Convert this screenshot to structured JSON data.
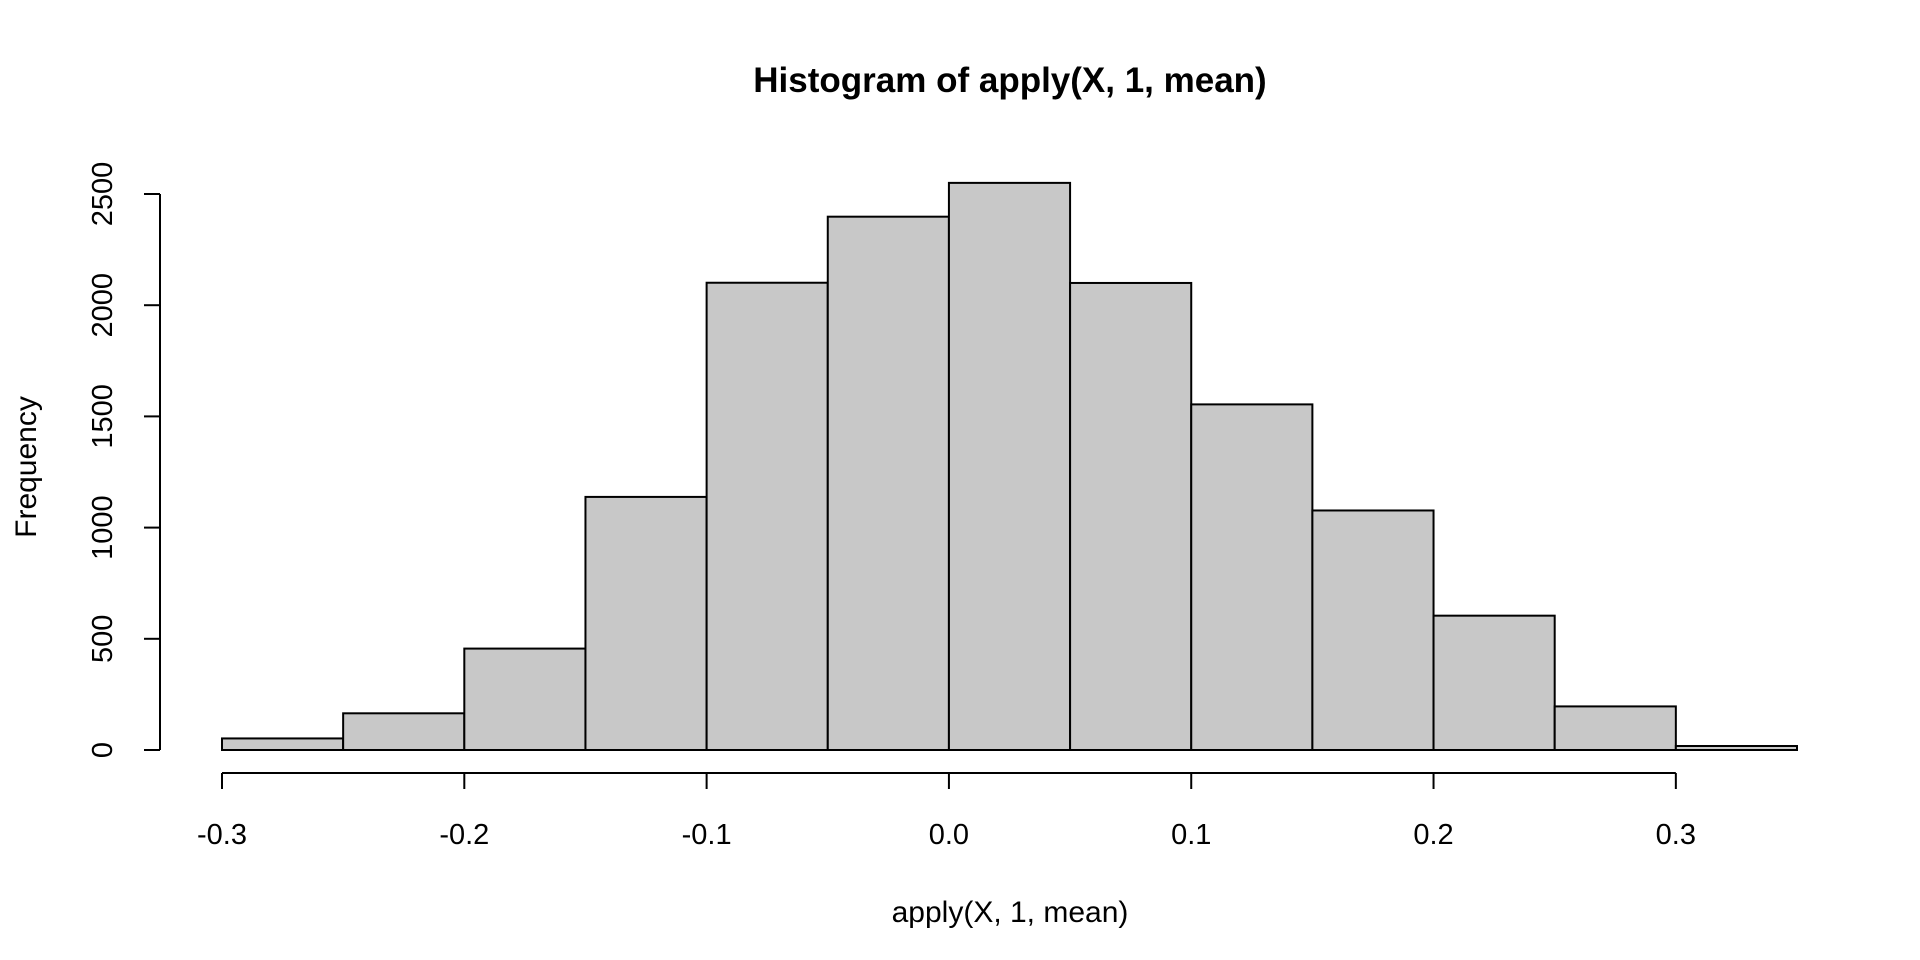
{
  "chart_data": {
    "type": "bar",
    "title": "Histogram of apply(X, 1, mean)",
    "xlabel": "apply(X, 1, mean)",
    "ylabel": "Frequency",
    "bin_edges": [
      -0.3,
      -0.25,
      -0.2,
      -0.15,
      -0.1,
      -0.05,
      0.0,
      0.05,
      0.1,
      0.15,
      0.2,
      0.25,
      0.3,
      0.35
    ],
    "values": [
      52,
      165,
      456,
      1138,
      2101,
      2398,
      2550,
      2100,
      1554,
      1077,
      604,
      196,
      18
    ],
    "xlim": [
      -0.3,
      0.35
    ],
    "ylim": [
      0,
      2500
    ],
    "x_ticks": [
      -0.3,
      -0.2,
      -0.1,
      0.0,
      0.1,
      0.2,
      0.3
    ],
    "x_tick_labels": [
      "-0.3",
      "-0.2",
      "-0.1",
      "0.0",
      "0.1",
      "0.2",
      "0.3"
    ],
    "y_ticks": [
      0,
      500,
      1000,
      1500,
      2000,
      2500
    ],
    "y_tick_labels": [
      "0",
      "500",
      "1000",
      "1500",
      "2000",
      "2500"
    ],
    "bar_color": "#c8c8c8",
    "edge_color": "#000000",
    "grid": false,
    "legend": "none"
  }
}
